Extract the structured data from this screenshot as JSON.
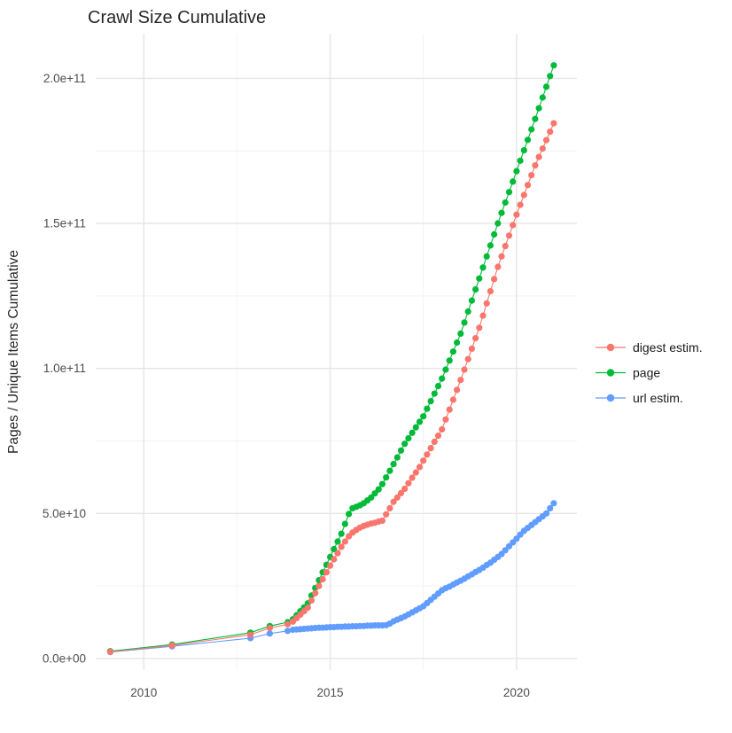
{
  "title": "Crawl Size Cumulative",
  "axes": {
    "y_title": "Pages / Unique Items Cumulative",
    "x_ticks": [
      {
        "label": "2010",
        "value": 2010
      },
      {
        "label": "2015",
        "value": 2015
      },
      {
        "label": "2020",
        "value": 2020
      }
    ],
    "x_minor": [
      2012.5,
      2017.5
    ],
    "y_ticks": [
      {
        "label": "0.0e+00",
        "value_e9": 0
      },
      {
        "label": "5.0e+10",
        "value_e9": 50
      },
      {
        "label": "1.0e+11",
        "value_e9": 100
      },
      {
        "label": "1.5e+11",
        "value_e9": 150
      },
      {
        "label": "2.0e+11",
        "value_e9": 200
      }
    ],
    "y_minor_e9": [
      25,
      75,
      125,
      175
    ],
    "xlim": [
      2008.71,
      2021.62
    ],
    "ylim_e9": [
      -4,
      215.4
    ],
    "grid": "on",
    "legend_position": "right"
  },
  "colors": {
    "grid_major": "#e5e5e5",
    "grid_minor": "#f2f2f2",
    "digest": "#F8766D",
    "page": "#00BA38",
    "url": "#619CFF"
  },
  "chart_data": {
    "type": "line",
    "title": "Crawl Size Cumulative",
    "xlabel": "",
    "ylabel": "Pages / Unique Items Cumulative",
    "units": "values in billions (1e9) of pages / unique items",
    "xlim": [
      2008.71,
      2021.62
    ],
    "ylim_e9": [
      -4,
      215.4
    ],
    "series": [
      {
        "name": "digest estim.",
        "color": "#F8766D",
        "points_year_value_e9": [
          [
            2009.1,
            2.3
          ],
          [
            2010.76,
            4.5
          ],
          [
            2012.86,
            8.2
          ],
          [
            2013.38,
            10.5
          ],
          [
            2013.86,
            11.8
          ],
          [
            2014.0,
            12.7
          ],
          [
            2014.1,
            13.9
          ],
          [
            2014.2,
            15.1
          ],
          [
            2014.3,
            16.3
          ],
          [
            2014.4,
            17.5
          ],
          [
            2014.5,
            20
          ],
          [
            2014.6,
            22.5
          ],
          [
            2014.7,
            25
          ],
          [
            2014.8,
            27.3
          ],
          [
            2014.9,
            29.7
          ],
          [
            2015.0,
            32
          ],
          [
            2015.1,
            34.2
          ],
          [
            2015.2,
            36.3
          ],
          [
            2015.3,
            38.5
          ],
          [
            2015.4,
            40.3
          ],
          [
            2015.5,
            42.1
          ],
          [
            2015.6,
            43.4
          ],
          [
            2015.7,
            44.3
          ],
          [
            2015.8,
            45.1
          ],
          [
            2015.9,
            45.7
          ],
          [
            2016.0,
            46.1
          ],
          [
            2016.1,
            46.5
          ],
          [
            2016.2,
            46.8
          ],
          [
            2016.3,
            47.2
          ],
          [
            2016.4,
            47.5
          ],
          [
            2016.5,
            49.7
          ],
          [
            2016.6,
            51.8
          ],
          [
            2016.7,
            54
          ],
          [
            2016.8,
            55.5
          ],
          [
            2016.9,
            57
          ],
          [
            2017.0,
            58.5
          ],
          [
            2017.1,
            60.4
          ],
          [
            2017.2,
            62.3
          ],
          [
            2017.3,
            64.1
          ],
          [
            2017.4,
            66
          ],
          [
            2017.5,
            68.2
          ],
          [
            2017.6,
            70.3
          ],
          [
            2017.7,
            72.5
          ],
          [
            2017.8,
            74.7
          ],
          [
            2017.9,
            76.8
          ],
          [
            2018.0,
            79
          ],
          [
            2018.1,
            82.4
          ],
          [
            2018.2,
            85.8
          ],
          [
            2018.3,
            89.2
          ],
          [
            2018.4,
            92.6
          ],
          [
            2018.5,
            96
          ],
          [
            2018.6,
            99.6
          ],
          [
            2018.7,
            103.2
          ],
          [
            2018.8,
            106.8
          ],
          [
            2018.9,
            110.4
          ],
          [
            2019.0,
            114
          ],
          [
            2019.1,
            118.2
          ],
          [
            2019.2,
            122.4
          ],
          [
            2019.3,
            126.6
          ],
          [
            2019.4,
            130.8
          ],
          [
            2019.5,
            135
          ],
          [
            2019.6,
            138.6
          ],
          [
            2019.7,
            142.2
          ],
          [
            2019.8,
            145.8
          ],
          [
            2019.9,
            149.4
          ],
          [
            2020.0,
            153
          ],
          [
            2020.1,
            156.4
          ],
          [
            2020.2,
            159.8
          ],
          [
            2020.3,
            163.2
          ],
          [
            2020.4,
            166.6
          ],
          [
            2020.5,
            170
          ],
          [
            2020.6,
            172.9
          ],
          [
            2020.7,
            175.8
          ],
          [
            2020.8,
            178.7
          ],
          [
            2020.9,
            181.6
          ],
          [
            2021.0,
            184.5
          ]
        ]
      },
      {
        "name": "page",
        "color": "#00BA38",
        "points_year_value_e9": [
          [
            2009.1,
            2.5
          ],
          [
            2010.76,
            4.8
          ],
          [
            2012.86,
            8.9
          ],
          [
            2013.38,
            11.2
          ],
          [
            2013.86,
            12.5
          ],
          [
            2014.0,
            13.5
          ],
          [
            2014.1,
            14.9
          ],
          [
            2014.2,
            16.3
          ],
          [
            2014.3,
            17.6
          ],
          [
            2014.4,
            19
          ],
          [
            2014.5,
            21.7
          ],
          [
            2014.6,
            24.3
          ],
          [
            2014.7,
            27
          ],
          [
            2014.8,
            29.7
          ],
          [
            2014.9,
            32.3
          ],
          [
            2015.0,
            35
          ],
          [
            2015.1,
            37.7
          ],
          [
            2015.2,
            40.3
          ],
          [
            2015.3,
            43
          ],
          [
            2015.4,
            46.4
          ],
          [
            2015.5,
            49.8
          ],
          [
            2015.6,
            51.8
          ],
          [
            2015.7,
            52.3
          ],
          [
            2015.8,
            52.8
          ],
          [
            2015.9,
            53.5
          ],
          [
            2016.0,
            54.5
          ],
          [
            2016.1,
            55.5
          ],
          [
            2016.2,
            56.9
          ],
          [
            2016.3,
            58.3
          ],
          [
            2016.4,
            60.1
          ],
          [
            2016.5,
            62.4
          ],
          [
            2016.6,
            64.7
          ],
          [
            2016.7,
            67
          ],
          [
            2016.8,
            69.3
          ],
          [
            2016.9,
            71.7
          ],
          [
            2017.0,
            74
          ],
          [
            2017.1,
            75.9
          ],
          [
            2017.2,
            77.8
          ],
          [
            2017.3,
            79.7
          ],
          [
            2017.4,
            81.6
          ],
          [
            2017.5,
            83.5
          ],
          [
            2017.6,
            86.1
          ],
          [
            2017.7,
            88.7
          ],
          [
            2017.8,
            91.3
          ],
          [
            2017.9,
            93.9
          ],
          [
            2018.0,
            96.5
          ],
          [
            2018.1,
            99.6
          ],
          [
            2018.2,
            102.7
          ],
          [
            2018.3,
            105.8
          ],
          [
            2018.4,
            108.9
          ],
          [
            2018.5,
            112
          ],
          [
            2018.6,
            115.8
          ],
          [
            2018.7,
            119.6
          ],
          [
            2018.8,
            123.4
          ],
          [
            2018.9,
            127.2
          ],
          [
            2019.0,
            131
          ],
          [
            2019.1,
            134.8
          ],
          [
            2019.2,
            138.6
          ],
          [
            2019.3,
            142.4
          ],
          [
            2019.4,
            146.2
          ],
          [
            2019.5,
            150
          ],
          [
            2019.6,
            153.6
          ],
          [
            2019.7,
            157.2
          ],
          [
            2019.8,
            160.8
          ],
          [
            2019.9,
            164.4
          ],
          [
            2020.0,
            168
          ],
          [
            2020.1,
            171.6
          ],
          [
            2020.2,
            175.2
          ],
          [
            2020.3,
            178.8
          ],
          [
            2020.4,
            182.4
          ],
          [
            2020.5,
            186
          ],
          [
            2020.6,
            189.7
          ],
          [
            2020.7,
            193.4
          ],
          [
            2020.8,
            197.1
          ],
          [
            2020.9,
            200.8
          ],
          [
            2021.0,
            204.5
          ]
        ]
      },
      {
        "name": "url estim.",
        "color": "#619CFF",
        "points_year_value_e9": [
          [
            2009.1,
            2.2
          ],
          [
            2010.76,
            4.2
          ],
          [
            2012.86,
            7.0
          ],
          [
            2013.38,
            8.6
          ],
          [
            2013.86,
            9.5
          ],
          [
            2014.0,
            9.9
          ],
          [
            2014.1,
            10.0
          ],
          [
            2014.2,
            10.1
          ],
          [
            2014.3,
            10.2
          ],
          [
            2014.4,
            10.3
          ],
          [
            2014.5,
            10.4
          ],
          [
            2014.6,
            10.5
          ],
          [
            2014.7,
            10.6
          ],
          [
            2014.8,
            10.6
          ],
          [
            2014.9,
            10.7
          ],
          [
            2015.0,
            10.8
          ],
          [
            2015.1,
            10.8
          ],
          [
            2015.2,
            10.9
          ],
          [
            2015.3,
            10.9
          ],
          [
            2015.4,
            11.0
          ],
          [
            2015.5,
            11.0
          ],
          [
            2015.6,
            11.1
          ],
          [
            2015.7,
            11.1
          ],
          [
            2015.8,
            11.2
          ],
          [
            2015.9,
            11.2
          ],
          [
            2016.0,
            11.3
          ],
          [
            2016.1,
            11.3
          ],
          [
            2016.2,
            11.4
          ],
          [
            2016.3,
            11.4
          ],
          [
            2016.4,
            11.4
          ],
          [
            2016.5,
            11.5
          ],
          [
            2016.6,
            12.0
          ],
          [
            2016.7,
            12.8
          ],
          [
            2016.8,
            13.4
          ],
          [
            2016.9,
            13.9
          ],
          [
            2017.0,
            14.5
          ],
          [
            2017.1,
            15.2
          ],
          [
            2017.2,
            15.9
          ],
          [
            2017.3,
            16.6
          ],
          [
            2017.4,
            17.3
          ],
          [
            2017.5,
            18
          ],
          [
            2017.6,
            19.1
          ],
          [
            2017.7,
            20.2
          ],
          [
            2017.8,
            21.3
          ],
          [
            2017.9,
            22.4
          ],
          [
            2018.0,
            23.5
          ],
          [
            2018.1,
            24.2
          ],
          [
            2018.2,
            24.8
          ],
          [
            2018.3,
            25.5
          ],
          [
            2018.4,
            26.2
          ],
          [
            2018.5,
            26.8
          ],
          [
            2018.6,
            27.5
          ],
          [
            2018.7,
            28.3
          ],
          [
            2018.8,
            29
          ],
          [
            2018.9,
            29.8
          ],
          [
            2019.0,
            30.5
          ],
          [
            2019.1,
            31.3
          ],
          [
            2019.2,
            32.2
          ],
          [
            2019.3,
            33
          ],
          [
            2019.4,
            34
          ],
          [
            2019.5,
            35
          ],
          [
            2019.6,
            36
          ],
          [
            2019.7,
            37.3
          ],
          [
            2019.8,
            38.7
          ],
          [
            2019.9,
            40
          ],
          [
            2020.0,
            41.3
          ],
          [
            2020.1,
            42.7
          ],
          [
            2020.2,
            44
          ],
          [
            2020.3,
            45
          ],
          [
            2020.4,
            46
          ],
          [
            2020.5,
            47
          ],
          [
            2020.6,
            48
          ],
          [
            2020.7,
            49
          ],
          [
            2020.8,
            50
          ],
          [
            2020.9,
            51.8
          ],
          [
            2021.0,
            53.5
          ]
        ]
      }
    ],
    "legend": [
      "digest estim.",
      "page",
      "url estim."
    ]
  }
}
